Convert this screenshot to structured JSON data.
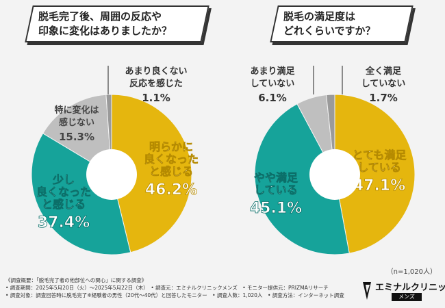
{
  "chart_data": [
    {
      "type": "pie",
      "title": "脱毛完了後、周囲の反応や印象に変化はありましたか？",
      "title_lines": [
        "脱毛完了後、周囲の反応や",
        "印象に変化はありましたか？"
      ],
      "unit": "%",
      "slices": [
        {
          "label_lines": [
            "明らかに",
            "良くなった",
            "と感じる"
          ],
          "value": 46.2,
          "value_text": "46.2%",
          "color": "#e5b60e"
        },
        {
          "label_lines": [
            "少し",
            "良くなった",
            "と感じる"
          ],
          "value": 37.4,
          "value_text": "37.4%",
          "color": "#16a39a"
        },
        {
          "label_lines": [
            "特に変化は",
            "感じない"
          ],
          "value": 15.3,
          "value_text": "15.3%",
          "color": "#bfbfbf"
        },
        {
          "label_lines": [
            "あまり良くない",
            "反応を感じた"
          ],
          "value": 1.1,
          "value_text": "1.1%",
          "color": "#9a9a9a"
        }
      ]
    },
    {
      "type": "pie",
      "title": "脱毛の満足度はどれくらいですか？",
      "title_lines": [
        "脱毛の満足度は",
        "どれくらいですか？"
      ],
      "unit": "%",
      "slices": [
        {
          "label_lines": [
            "とても満足",
            "している"
          ],
          "value": 47.1,
          "value_text": "47.1%",
          "color": "#e5b60e"
        },
        {
          "label_lines": [
            "やや満足",
            "している"
          ],
          "value": 45.1,
          "value_text": "45.1%",
          "color": "#16a39a"
        },
        {
          "label_lines": [
            "あまり満足",
            "していない"
          ],
          "value": 6.1,
          "value_text": "6.1%",
          "color": "#bfbfbf"
        },
        {
          "label_lines": [
            "全く満足",
            "していない"
          ],
          "value": 1.7,
          "value_text": "1.7%",
          "color": "#9a9a9a"
        }
      ]
    }
  ],
  "sample_size": "（n=1,020人）",
  "footer": {
    "line1": "《調査概要：「脱毛完了者の他部位への関心」に関する調査》",
    "line2": "• 調査期間：2025年5月20日（火）～2025年5月22日（木）　• 調査元：エミナルクリニックメンズ　• モニター提供元：PRIZMAリサーチ",
    "line3": "• 調査対象：調査回答時に脱毛完了※経験者の男性（20代〜40代）と回答したモニター　• 調査人数：1,020人　• 調査方法：インターネット調査"
  },
  "logo": {
    "main": "エミナルクリニック",
    "sub": "メンズ"
  }
}
